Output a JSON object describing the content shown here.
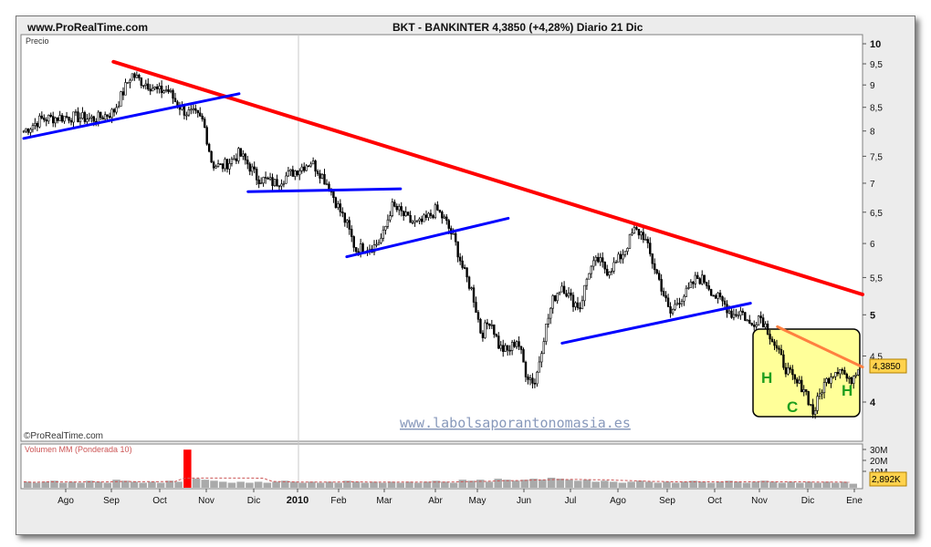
{
  "header": {
    "site": "www.ProRealTime.com",
    "title": "BKT - BANKINTER    4,3850 (+4,28%)    Diario  21 Dic"
  },
  "chart_data": {
    "type": "candlestick",
    "price_panel": {
      "label": "Precio",
      "y_ticks": [
        "10",
        "9,5",
        "9",
        "8,5",
        "8",
        "7,5",
        "7",
        "6,5",
        "6",
        "5,5",
        "5",
        "4,5",
        "4"
      ],
      "last_price_label": "4,3850",
      "copyright": "©ProRealTime.com",
      "watermark": "www.labolsaporantonomasia.es",
      "pattern_labels": [
        "H",
        "C",
        "H"
      ]
    },
    "volume_panel": {
      "label": "Volumen MM (Ponderada 10)",
      "y_ticks": [
        "30M",
        "20M",
        "10M"
      ],
      "last_volume_label": "2,892K"
    },
    "x_axis": {
      "labels": [
        "Ago",
        "Sep",
        "Oct",
        "Nov",
        "Dic",
        "2010",
        "Feb",
        "Mar",
        "Abr",
        "May",
        "Jun",
        "Jul",
        "Ago",
        "Sep",
        "Oct",
        "Nov",
        "Dic",
        "Ene"
      ]
    },
    "price_path": [
      [
        0,
        8.0
      ],
      [
        2,
        8.25
      ],
      [
        5,
        8.3
      ],
      [
        8,
        8.25
      ],
      [
        10,
        8.4
      ],
      [
        11,
        8.8
      ],
      [
        12,
        9.25
      ],
      [
        13,
        9.1
      ],
      [
        14,
        9.0
      ],
      [
        15,
        8.85
      ],
      [
        16,
        8.9
      ],
      [
        17,
        8.6
      ],
      [
        18,
        8.4
      ],
      [
        19,
        8.35
      ],
      [
        20,
        8.2
      ],
      [
        21,
        7.35
      ],
      [
        22,
        7.3
      ],
      [
        23,
        7.4
      ],
      [
        24,
        7.55
      ],
      [
        25,
        7.35
      ],
      [
        26,
        7.1
      ],
      [
        28,
        7.0
      ],
      [
        30,
        7.2
      ],
      [
        32,
        7.4
      ],
      [
        33,
        7.2
      ],
      [
        34,
        6.95
      ],
      [
        35,
        6.6
      ],
      [
        36,
        6.3
      ],
      [
        37,
        5.9
      ],
      [
        38,
        5.95
      ],
      [
        39,
        5.95
      ],
      [
        40,
        6.1
      ],
      [
        41,
        6.6
      ],
      [
        42,
        6.5
      ],
      [
        43,
        6.35
      ],
      [
        44,
        6.3
      ],
      [
        45,
        6.4
      ],
      [
        46,
        6.55
      ],
      [
        47,
        6.35
      ],
      [
        48,
        6.05
      ],
      [
        49,
        5.6
      ],
      [
        50,
        5.3
      ],
      [
        51,
        4.75
      ],
      [
        52,
        4.95
      ],
      [
        53,
        4.6
      ],
      [
        54,
        4.55
      ],
      [
        55,
        4.7
      ],
      [
        56,
        4.3
      ],
      [
        57,
        4.2
      ],
      [
        58,
        4.75
      ],
      [
        59,
        5.2
      ],
      [
        60,
        5.4
      ],
      [
        61,
        5.2
      ],
      [
        62,
        5.1
      ],
      [
        63,
        5.6
      ],
      [
        64,
        5.75
      ],
      [
        65,
        5.6
      ],
      [
        66,
        5.7
      ],
      [
        67,
        5.9
      ],
      [
        68,
        6.2
      ],
      [
        69,
        6.15
      ],
      [
        70,
        5.75
      ],
      [
        71,
        5.4
      ],
      [
        72,
        5.0
      ],
      [
        73,
        5.2
      ],
      [
        74,
        5.3
      ],
      [
        75,
        5.5
      ],
      [
        76,
        5.45
      ],
      [
        77,
        5.25
      ],
      [
        78,
        5.15
      ],
      [
        79,
        5.0
      ],
      [
        80,
        5.05
      ],
      [
        81,
        4.85
      ],
      [
        82,
        5.0
      ],
      [
        83,
        4.8
      ],
      [
        84,
        4.55
      ],
      [
        85,
        4.35
      ],
      [
        86,
        4.2
      ],
      [
        87,
        4.15
      ],
      [
        88,
        3.88
      ],
      [
        89,
        4.15
      ],
      [
        90,
        4.3
      ],
      [
        91,
        4.38
      ],
      [
        92,
        4.2
      ],
      [
        93,
        4.39
      ]
    ],
    "volume": [
      6,
      5,
      6,
      7,
      5,
      6,
      5,
      7,
      6,
      5,
      8,
      7,
      6,
      5,
      6,
      5,
      7,
      6,
      38,
      9,
      8,
      7,
      6,
      5,
      6,
      5,
      6,
      5,
      6,
      7,
      6,
      5,
      6,
      5,
      6,
      5,
      7,
      6,
      5,
      6,
      5,
      6,
      5,
      6,
      5,
      6,
      7,
      6,
      5,
      8,
      7,
      8,
      6,
      9,
      8,
      7,
      8,
      9,
      8,
      10,
      9,
      8,
      7,
      8,
      6,
      7,
      6,
      5,
      6,
      7,
      6,
      5,
      6,
      5,
      6,
      7,
      6,
      5,
      6,
      7,
      6,
      5,
      6,
      7,
      6,
      5,
      6,
      5,
      6,
      5,
      6,
      5,
      6,
      4
    ],
    "trendlines": {
      "resistance_red": [
        [
          10,
          9.55
        ],
        [
          98,
          5.1
        ]
      ],
      "blue_channels": [
        [
          [
            0,
            7.85
          ],
          [
            24,
            8.8
          ]
        ],
        [
          [
            25,
            6.85
          ],
          [
            42,
            6.9
          ]
        ],
        [
          [
            36,
            5.8
          ],
          [
            54,
            6.4
          ]
        ],
        [
          [
            60,
            4.65
          ],
          [
            81,
            5.15
          ]
        ]
      ],
      "orange_neckline": [
        [
          84,
          4.85
        ],
        [
          94,
          4.35
        ]
      ]
    },
    "colors": {
      "candle": "#000000",
      "resistance": "#ff0000",
      "support": "#0000ff",
      "neckline": "#ff8040",
      "highlight": "#ffff99",
      "watermark": "#8899bb",
      "pattern_label": "#1e9e1e",
      "volume": "#aaaaaa",
      "volume_spike": "#ff0000"
    }
  }
}
